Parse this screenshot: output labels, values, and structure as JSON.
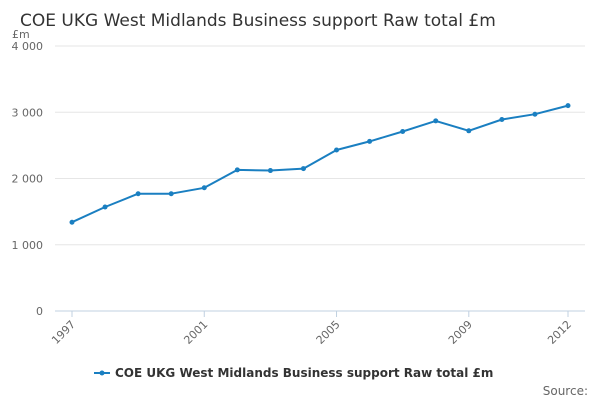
{
  "chart_data": {
    "type": "line",
    "title": "COE UKG West Midlands Business support Raw total £m",
    "ylabel": "£m",
    "xlabel": "",
    "ylim": [
      0,
      4000
    ],
    "yticks": [
      0,
      1000,
      2000,
      3000,
      4000
    ],
    "ytick_labels": [
      "0",
      "1 000",
      "2 000",
      "3 000",
      "4 000"
    ],
    "xlim": [
      1997,
      2012
    ],
    "xticks": [
      1997,
      2001,
      2005,
      2009,
      2012
    ],
    "xtick_labels": [
      "1997",
      "2001",
      "2005",
      "2009",
      "2012"
    ],
    "grid": true,
    "legend_position": "bottom-center",
    "series": [
      {
        "name": "COE UKG West Midlands Business support Raw total £m",
        "color": "#1a7fc1",
        "x": [
          1997,
          1998,
          1999,
          2000,
          2001,
          2002,
          2003,
          2004,
          2005,
          2006,
          2007,
          2008,
          2009,
          2010,
          2011,
          2012
        ],
        "values": [
          1340,
          1570,
          1770,
          1770,
          1860,
          2130,
          2120,
          2150,
          2430,
          2560,
          2710,
          2870,
          2720,
          2890,
          2970,
          3100
        ]
      }
    ]
  },
  "source_label": "Source:"
}
